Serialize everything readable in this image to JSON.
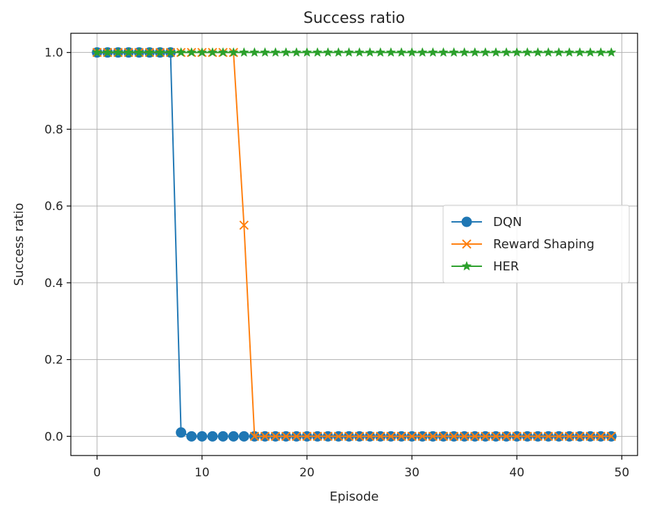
{
  "chart_data": {
    "type": "line",
    "title": "Success ratio",
    "xlabel": "Episode",
    "ylabel": "Success ratio",
    "xlim": [
      -2.5,
      51.5
    ],
    "ylim": [
      -0.05,
      1.05
    ],
    "xticks": [
      0,
      10,
      20,
      30,
      40,
      50
    ],
    "yticks": [
      0.0,
      0.2,
      0.4,
      0.6,
      0.8,
      1.0
    ],
    "xtick_labels": [
      "0",
      "10",
      "20",
      "30",
      "40",
      "50"
    ],
    "ytick_labels": [
      "0.0",
      "0.2",
      "0.4",
      "0.6",
      "0.8",
      "1.0"
    ],
    "grid": true,
    "legend_position": "center-right",
    "x": [
      0,
      1,
      2,
      3,
      4,
      5,
      6,
      7,
      8,
      9,
      10,
      11,
      12,
      13,
      14,
      15,
      16,
      17,
      18,
      19,
      20,
      21,
      22,
      23,
      24,
      25,
      26,
      27,
      28,
      29,
      30,
      31,
      32,
      33,
      34,
      35,
      36,
      37,
      38,
      39,
      40,
      41,
      42,
      43,
      44,
      45,
      46,
      47,
      48,
      49
    ],
    "series": [
      {
        "name": "DQN",
        "color": "#1f77b4",
        "marker": "circle",
        "values": [
          1,
          1,
          1,
          1,
          1,
          1,
          1,
          1,
          0.01,
          0,
          0,
          0,
          0,
          0,
          0,
          0,
          0,
          0,
          0,
          0,
          0,
          0,
          0,
          0,
          0,
          0,
          0,
          0,
          0,
          0,
          0,
          0,
          0,
          0,
          0,
          0,
          0,
          0,
          0,
          0,
          0,
          0,
          0,
          0,
          0,
          0,
          0,
          0,
          0,
          0
        ]
      },
      {
        "name": "Reward Shaping",
        "color": "#ff7f0e",
        "marker": "x",
        "values": [
          1,
          1,
          1,
          1,
          1,
          1,
          1,
          1,
          1,
          1,
          1,
          1,
          1,
          1,
          0.55,
          0,
          0,
          0,
          0,
          0,
          0,
          0,
          0,
          0,
          0,
          0,
          0,
          0,
          0,
          0,
          0,
          0,
          0,
          0,
          0,
          0,
          0,
          0,
          0,
          0,
          0,
          0,
          0,
          0,
          0,
          0,
          0,
          0,
          0,
          0
        ]
      },
      {
        "name": "HER",
        "color": "#2ca02c",
        "marker": "star",
        "values": [
          1,
          1,
          1,
          1,
          1,
          1,
          1,
          1,
          1,
          1,
          1,
          1,
          1,
          1,
          1,
          1,
          1,
          1,
          1,
          1,
          1,
          1,
          1,
          1,
          1,
          1,
          1,
          1,
          1,
          1,
          1,
          1,
          1,
          1,
          1,
          1,
          1,
          1,
          1,
          1,
          1,
          1,
          1,
          1,
          1,
          1,
          1,
          1,
          1,
          1
        ]
      }
    ]
  }
}
